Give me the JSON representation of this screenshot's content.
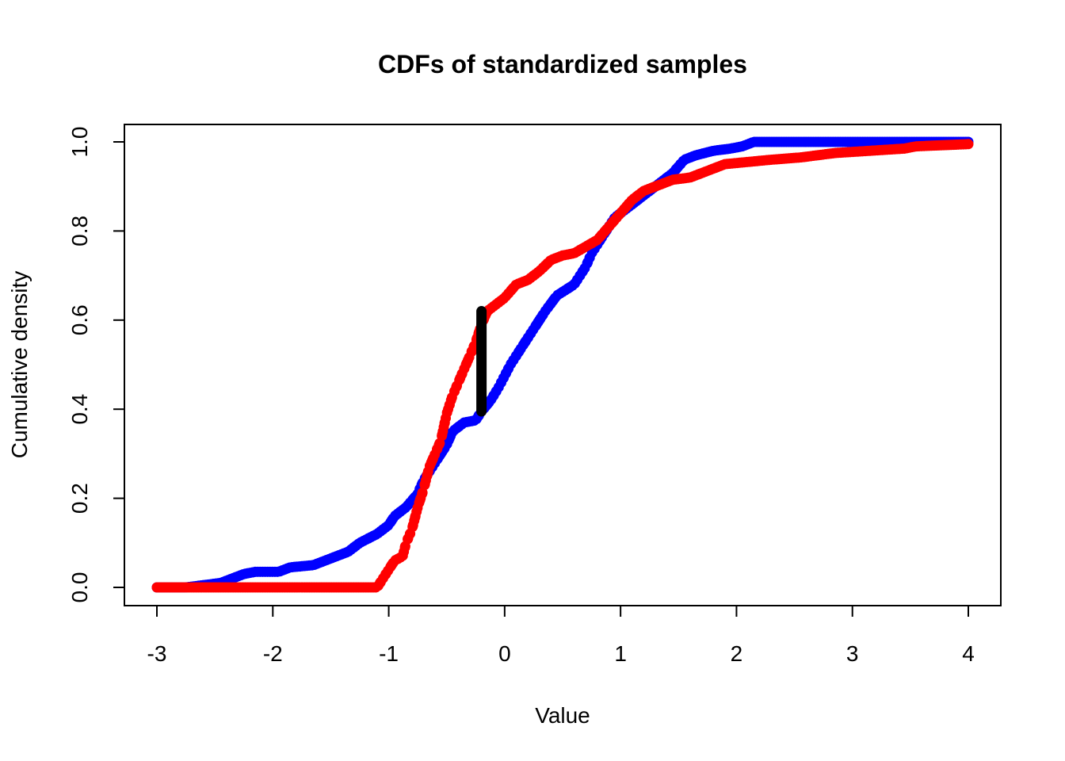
{
  "chart_data": {
    "type": "scatter",
    "title": "CDFs of standardized samples",
    "xlabel": "Value",
    "ylabel": "Cumulative density",
    "xlim": [
      -3.2,
      4.2
    ],
    "ylim": [
      -0.04,
      1.04
    ],
    "xticks": [
      -3,
      -2,
      -1,
      0,
      1,
      2,
      3,
      4
    ],
    "xtick_labels": [
      "-3",
      "-2",
      "-1",
      "0",
      "1",
      "2",
      "3",
      "4"
    ],
    "yticks": [
      0.0,
      0.2,
      0.4,
      0.6,
      0.8,
      1.0
    ],
    "ytick_labels": [
      "0.0",
      "0.2",
      "0.4",
      "0.6",
      "0.8",
      "1.0"
    ],
    "grid": false,
    "legend": "none",
    "series": [
      {
        "color": "#0000ff",
        "curve": [
          [
            -3.0,
            0.0
          ],
          [
            -2.75,
            0.0
          ],
          [
            -2.6,
            0.005
          ],
          [
            -2.45,
            0.01
          ],
          [
            -2.35,
            0.02
          ],
          [
            -2.25,
            0.03
          ],
          [
            -2.15,
            0.035
          ],
          [
            -1.95,
            0.035
          ],
          [
            -1.85,
            0.045
          ],
          [
            -1.65,
            0.05
          ],
          [
            -1.55,
            0.06
          ],
          [
            -1.45,
            0.07
          ],
          [
            -1.35,
            0.08
          ],
          [
            -1.25,
            0.1
          ],
          [
            -1.1,
            0.12
          ],
          [
            -1.0,
            0.14
          ],
          [
            -0.95,
            0.16
          ],
          [
            -0.85,
            0.18
          ],
          [
            -0.75,
            0.21
          ],
          [
            -0.7,
            0.24
          ],
          [
            -0.6,
            0.28
          ],
          [
            -0.5,
            0.32
          ],
          [
            -0.45,
            0.35
          ],
          [
            -0.35,
            0.37
          ],
          [
            -0.25,
            0.375
          ],
          [
            -0.2,
            0.395
          ],
          [
            -0.12,
            0.42
          ],
          [
            -0.05,
            0.45
          ],
          [
            0.05,
            0.5
          ],
          [
            0.15,
            0.54
          ],
          [
            0.25,
            0.58
          ],
          [
            0.35,
            0.62
          ],
          [
            0.45,
            0.655
          ],
          [
            0.6,
            0.68
          ],
          [
            0.7,
            0.72
          ],
          [
            0.75,
            0.75
          ],
          [
            0.85,
            0.79
          ],
          [
            0.95,
            0.83
          ],
          [
            1.05,
            0.85
          ],
          [
            1.2,
            0.88
          ],
          [
            1.35,
            0.91
          ],
          [
            1.45,
            0.93
          ],
          [
            1.55,
            0.96
          ],
          [
            1.65,
            0.97
          ],
          [
            1.8,
            0.98
          ],
          [
            1.95,
            0.985
          ],
          [
            2.05,
            0.99
          ],
          [
            2.15,
            1.0
          ],
          [
            4.0,
            1.0
          ]
        ]
      },
      {
        "color": "#ff0000",
        "curve": [
          [
            -3.0,
            0.0
          ],
          [
            -1.1,
            0.0
          ],
          [
            -1.05,
            0.02
          ],
          [
            -1.0,
            0.04
          ],
          [
            -0.95,
            0.06
          ],
          [
            -0.88,
            0.07
          ],
          [
            -0.85,
            0.1
          ],
          [
            -0.8,
            0.13
          ],
          [
            -0.75,
            0.18
          ],
          [
            -0.7,
            0.22
          ],
          [
            -0.65,
            0.27
          ],
          [
            -0.6,
            0.3
          ],
          [
            -0.55,
            0.33
          ],
          [
            -0.5,
            0.39
          ],
          [
            -0.45,
            0.43
          ],
          [
            -0.4,
            0.46
          ],
          [
            -0.35,
            0.49
          ],
          [
            -0.3,
            0.52
          ],
          [
            -0.25,
            0.55
          ],
          [
            -0.2,
            0.59
          ],
          [
            -0.15,
            0.62
          ],
          [
            -0.1,
            0.63
          ],
          [
            0.0,
            0.65
          ],
          [
            0.1,
            0.68
          ],
          [
            0.2,
            0.69
          ],
          [
            0.3,
            0.71
          ],
          [
            0.4,
            0.735
          ],
          [
            0.5,
            0.745
          ],
          [
            0.6,
            0.75
          ],
          [
            0.7,
            0.765
          ],
          [
            0.8,
            0.78
          ],
          [
            0.9,
            0.81
          ],
          [
            1.0,
            0.84
          ],
          [
            1.1,
            0.87
          ],
          [
            1.2,
            0.89
          ],
          [
            1.35,
            0.905
          ],
          [
            1.45,
            0.915
          ],
          [
            1.6,
            0.92
          ],
          [
            1.75,
            0.935
          ],
          [
            1.9,
            0.95
          ],
          [
            2.1,
            0.955
          ],
          [
            2.3,
            0.96
          ],
          [
            2.55,
            0.965
          ],
          [
            2.85,
            0.975
          ],
          [
            3.45,
            0.985
          ],
          [
            3.55,
            0.99
          ],
          [
            4.0,
            0.995
          ]
        ]
      }
    ],
    "segment": {
      "color": "#000000",
      "x": -0.2,
      "y": [
        0.395,
        0.62
      ]
    }
  }
}
